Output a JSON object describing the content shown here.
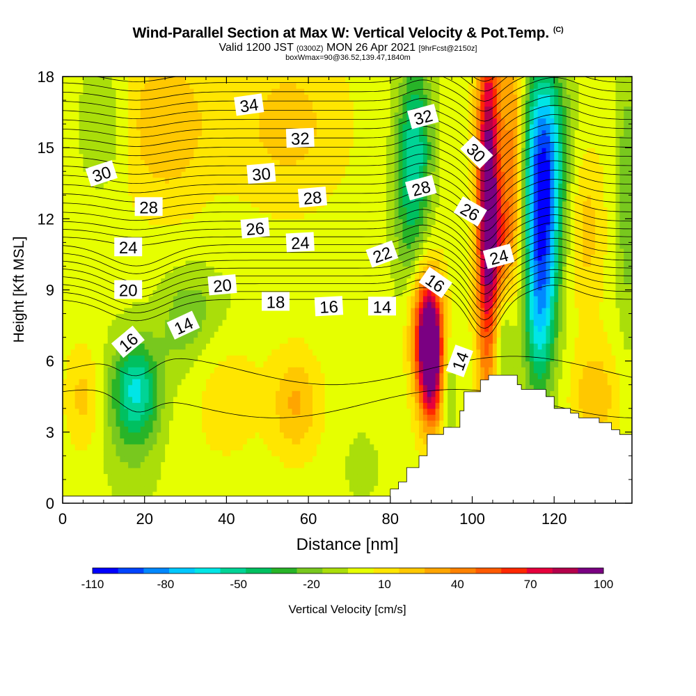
{
  "title": {
    "main": "Wind-Parallel Section at Max W: Vertical Velocity & Pot.Temp.",
    "copyright": "(C)",
    "sub_valid": "Valid 1200 JST",
    "sub_zulu": "(0300Z)",
    "sub_date": "MON 26 Apr 2021",
    "sub_fcst": "[9hrFcst@2150z]",
    "sub2": "boxWmax=90@36.52,139.47,1840m"
  },
  "chart_data": {
    "type": "heatmap",
    "xlabel": "Distance [nm]",
    "ylabel": "Height [Kft MSL]",
    "xlim": [
      0,
      139
    ],
    "ylim": [
      0,
      18
    ],
    "x_ticks": [
      0,
      20,
      40,
      60,
      80,
      100,
      120
    ],
    "y_ticks": [
      0,
      3,
      6,
      9,
      12,
      15,
      18
    ],
    "colorbar": {
      "label": "Vertical Velocity [cm/s]",
      "tick_labels": [
        -110,
        -80,
        -50,
        -20,
        10,
        40,
        70,
        100
      ],
      "min": -110,
      "max": 100,
      "colors": [
        "#0000ff",
        "#0044ff",
        "#0088ff",
        "#00c8ff",
        "#00e6e6",
        "#00d496",
        "#00c060",
        "#28b428",
        "#78c81e",
        "#aade0a",
        "#e6ff00",
        "#ffe600",
        "#ffc800",
        "#ffa500",
        "#ff8200",
        "#ff5a00",
        "#ff2800",
        "#e6003c",
        "#b4004b",
        "#7a0082"
      ]
    },
    "terrain": [
      [
        0,
        0.3
      ],
      [
        78,
        0.3
      ],
      [
        80,
        0.6
      ],
      [
        82,
        0.9
      ],
      [
        84,
        1.5
      ],
      [
        86,
        1.5
      ],
      [
        87,
        2.0
      ],
      [
        88,
        2.0
      ],
      [
        89,
        2.9
      ],
      [
        91,
        2.9
      ],
      [
        93,
        3.2
      ],
      [
        95,
        3.2
      ],
      [
        97,
        3.9
      ],
      [
        98,
        4.7
      ],
      [
        101,
        4.7
      ],
      [
        102,
        5.2
      ],
      [
        104,
        5.4
      ],
      [
        109,
        5.4
      ],
      [
        111,
        5.0
      ],
      [
        112,
        4.8
      ],
      [
        117,
        4.8
      ],
      [
        118,
        4.5
      ],
      [
        120,
        4.0
      ],
      [
        122,
        4.0
      ],
      [
        124,
        3.8
      ],
      [
        126,
        3.6
      ],
      [
        131,
        3.4
      ],
      [
        134,
        3.1
      ],
      [
        136,
        2.9
      ],
      [
        139,
        2.9
      ]
    ],
    "w_blobs": [
      {
        "x": 18,
        "y": 4.8,
        "sx": 4,
        "sy": 1.4,
        "w": -45
      },
      {
        "x": 17,
        "y": 3.6,
        "sx": 5,
        "sy": 2.5,
        "w": -18
      },
      {
        "x": 33,
        "y": 8.3,
        "sx": 6,
        "sy": 1.3,
        "w": -16
      },
      {
        "x": 29,
        "y": 7.0,
        "sx": 4,
        "sy": 1.5,
        "w": -12
      },
      {
        "x": 10,
        "y": 16.0,
        "sx": 4,
        "sy": 2.0,
        "w": -18
      },
      {
        "x": 25,
        "y": 16.0,
        "sx": 8,
        "sy": 2.5,
        "w": 25
      },
      {
        "x": 55,
        "y": 16.0,
        "sx": 10,
        "sy": 2.5,
        "w": 20
      },
      {
        "x": 40,
        "y": 4.5,
        "sx": 7,
        "sy": 2.2,
        "w": 10
      },
      {
        "x": 57,
        "y": 4.2,
        "sx": 4,
        "sy": 1.5,
        "w": 28
      },
      {
        "x": 5,
        "y": 4.5,
        "sx": 3,
        "sy": 1.5,
        "w": 20
      },
      {
        "x": 73,
        "y": 1.5,
        "sx": 4,
        "sy": 1.5,
        "w": -8
      },
      {
        "x": 86,
        "y": 15.5,
        "sx": 3,
        "sy": 2.5,
        "w": -45
      },
      {
        "x": 85,
        "y": 12.0,
        "sx": 3,
        "sy": 2.5,
        "w": -25
      },
      {
        "x": 90,
        "y": 6.2,
        "sx": 2.2,
        "sy": 2.0,
        "w": 115
      },
      {
        "x": 88,
        "y": 7.5,
        "sx": 2.5,
        "sy": 1.8,
        "w": 45
      },
      {
        "x": 94,
        "y": 5.0,
        "sx": 1.5,
        "sy": 1.5,
        "w": -22
      },
      {
        "x": 104,
        "y": 12.5,
        "sx": 2.0,
        "sy": 5.5,
        "w": 110
      },
      {
        "x": 110,
        "y": 14.5,
        "sx": 2.0,
        "sy": 4.0,
        "w": 45
      },
      {
        "x": 107,
        "y": 10.5,
        "sx": 2.0,
        "sy": 2.0,
        "w": 30
      },
      {
        "x": 107,
        "y": 7.3,
        "sx": 2.2,
        "sy": 2.0,
        "w": -35
      },
      {
        "x": 117,
        "y": 11.5,
        "sx": 3.0,
        "sy": 3.5,
        "w": -95
      },
      {
        "x": 118,
        "y": 15.5,
        "sx": 4.0,
        "sy": 2.5,
        "w": -45
      },
      {
        "x": 116,
        "y": 7.0,
        "sx": 2.5,
        "sy": 2.0,
        "w": -25
      },
      {
        "x": 128,
        "y": 11.5,
        "sx": 3.0,
        "sy": 2.5,
        "w": 20
      },
      {
        "x": 130,
        "y": 4.5,
        "sx": 4.0,
        "sy": 1.5,
        "w": 25
      },
      {
        "x": 138,
        "y": 13.0,
        "sx": 2.0,
        "sy": 4.0,
        "w": -25
      }
    ],
    "theta_contours": [
      10,
      11,
      12,
      13,
      14,
      15,
      16,
      17,
      18,
      19,
      20,
      21,
      22,
      23,
      24,
      25,
      26,
      27,
      28,
      29,
      30,
      31,
      32,
      33,
      34,
      35,
      36,
      37,
      38
    ],
    "contour_labels": [
      {
        "text": "34",
        "x": 45.5,
        "y": 16.8,
        "angle": -8
      },
      {
        "text": "32",
        "x": 58,
        "y": 15.4,
        "angle": -2
      },
      {
        "text": "30",
        "x": 9.5,
        "y": 13.9,
        "angle": -18
      },
      {
        "text": "30",
        "x": 48.5,
        "y": 13.9,
        "angle": -5
      },
      {
        "text": "28",
        "x": 21,
        "y": 12.5,
        "angle": 0
      },
      {
        "text": "28",
        "x": 61,
        "y": 12.9,
        "angle": -5
      },
      {
        "text": "26",
        "x": 47,
        "y": 11.6,
        "angle": -5
      },
      {
        "text": "24",
        "x": 16,
        "y": 10.8,
        "angle": 0
      },
      {
        "text": "24",
        "x": 58,
        "y": 11.0,
        "angle": -3
      },
      {
        "text": "22",
        "x": 78,
        "y": 10.5,
        "angle": -20
      },
      {
        "text": "20",
        "x": 16,
        "y": 9.0,
        "angle": 0
      },
      {
        "text": "20",
        "x": 39,
        "y": 9.2,
        "angle": -5
      },
      {
        "text": "18",
        "x": 52,
        "y": 8.5,
        "angle": 0
      },
      {
        "text": "16",
        "x": 65,
        "y": 8.3,
        "angle": -3
      },
      {
        "text": "14",
        "x": 78,
        "y": 8.3,
        "angle": 0
      },
      {
        "text": "16",
        "x": 16,
        "y": 6.8,
        "angle": -40
      },
      {
        "text": "14",
        "x": 29.5,
        "y": 7.5,
        "angle": -25
      },
      {
        "text": "32",
        "x": 88,
        "y": 16.3,
        "angle": -15
      },
      {
        "text": "28",
        "x": 87.5,
        "y": 13.3,
        "angle": -15
      },
      {
        "text": "30",
        "x": 101,
        "y": 14.8,
        "angle": 45
      },
      {
        "text": "26",
        "x": 99.5,
        "y": 12.3,
        "angle": 30
      },
      {
        "text": "24",
        "x": 106.5,
        "y": 10.4,
        "angle": -15
      },
      {
        "text": "16",
        "x": 91,
        "y": 9.3,
        "angle": 35
      },
      {
        "text": "14",
        "x": 97,
        "y": 6.0,
        "angle": -70
      }
    ]
  }
}
